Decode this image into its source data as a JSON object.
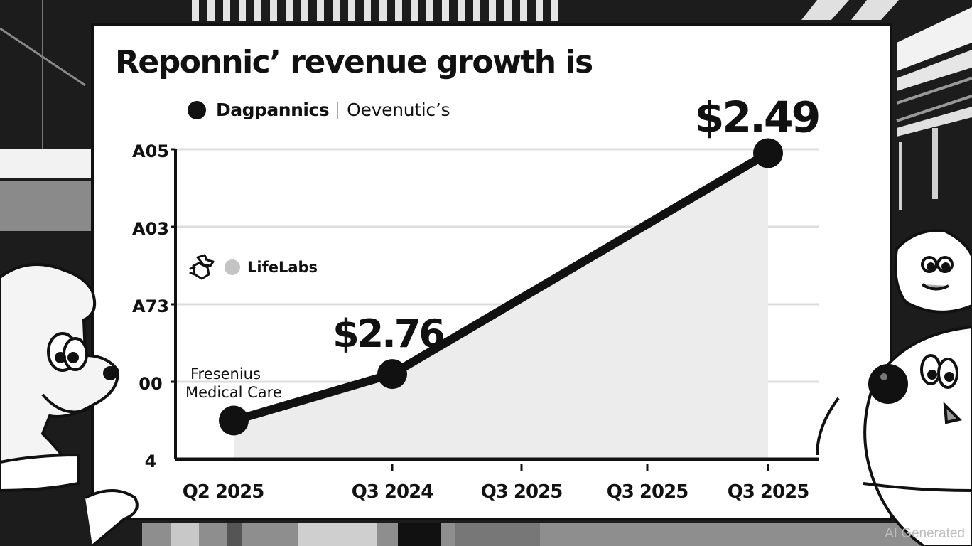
{
  "chart_data": {
    "type": "line",
    "title": "Reponnic’ revenue growth is",
    "legend": [
      {
        "label": "Dagpannics",
        "marker": "black-dot",
        "color": "#111111"
      },
      {
        "label": "Oevenutic’s",
        "marker": "none",
        "color": "#111111"
      },
      {
        "label": "LifeLabs",
        "marker": "gray-dot",
        "color": "#c4c4c4"
      }
    ],
    "legend_placement": "top-left",
    "xlabel": "",
    "ylabel": "",
    "x_ticks": [
      "Q2 2025",
      "Q3 2024",
      "Q3 2025",
      "Q3 2025",
      "Q3 2025"
    ],
    "y_ticks": [
      "4",
      "00",
      "A73",
      "A03",
      "A05"
    ],
    "y_tick_values": [
      0,
      1,
      2,
      3,
      4
    ],
    "ylim": [
      0,
      4
    ],
    "grid": true,
    "area_fill": true,
    "series": [
      {
        "name": "Dagpannics",
        "x_index": [
          0,
          1,
          4
        ],
        "values": [
          0.5,
          1.1,
          3.95
        ],
        "data_labels": [
          "",
          "$2.76",
          "$2.49"
        ],
        "color": "#111111",
        "fill": "#ececec"
      }
    ],
    "annotations": [
      {
        "text": "Fresenius Medical Care",
        "near_point": 0
      }
    ]
  },
  "watermark": "AI Generated",
  "colors": {
    "board": "#ffffff",
    "line": "#111111",
    "area": "#ececec",
    "grid": "#dcdcdc",
    "background": "#1a1a1a"
  }
}
